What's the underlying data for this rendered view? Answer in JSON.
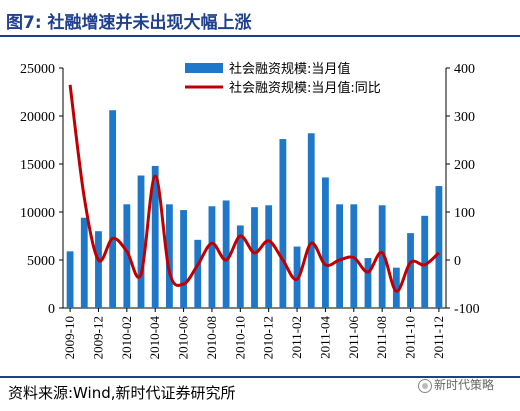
{
  "header": {
    "title": "图7:  社融增速并未出现大幅上涨"
  },
  "source": "资料来源:Wind,新时代证券研究所",
  "watermark": "新时代策略",
  "colors": {
    "bar": "#1f77c9",
    "line": "#c00000",
    "title": "#1f3f8f",
    "rule": "#1f3f8f"
  },
  "chart_data": {
    "type": "bar+line",
    "legend_position": "top-right",
    "grid": false,
    "categories": [
      "2009-10",
      "2009-11",
      "2009-12",
      "2010-01",
      "2010-02",
      "2010-03",
      "2010-04",
      "2010-05",
      "2010-06",
      "2010-07",
      "2010-08",
      "2010-09",
      "2010-10",
      "2010-11",
      "2010-12",
      "2011-01",
      "2011-02",
      "2011-03",
      "2011-04",
      "2011-05",
      "2011-06",
      "2011-07",
      "2011-08",
      "2011-09",
      "2011-10",
      "2011-11",
      "2011-12"
    ],
    "x_tick_labels": [
      "2009-10",
      "2009-12",
      "2010-02",
      "2010-04",
      "2010-06",
      "2010-08",
      "2010-10",
      "2010-12",
      "2011-02",
      "2011-04",
      "2011-06",
      "2011-08",
      "2011-10",
      "2011-12"
    ],
    "y_left": {
      "min": 0,
      "max": 25000,
      "ticks": [
        "0",
        "5000",
        "10000",
        "15000",
        "20000",
        "25000"
      ]
    },
    "y_right": {
      "min": -100,
      "max": 400,
      "ticks": [
        "-100",
        "0",
        "100",
        "200",
        "300",
        "400"
      ]
    },
    "series": [
      {
        "name": "社会融资规模:当月值",
        "type": "bar",
        "axis": "left",
        "values": [
          5900,
          9400,
          8000,
          20600,
          10800,
          13800,
          14800,
          10800,
          10200,
          7100,
          10600,
          11200,
          8600,
          10500,
          10700,
          17600,
          6400,
          18200,
          13600,
          10800,
          10800,
          5200,
          10700,
          4200,
          7800,
          9600,
          12700
        ]
      },
      {
        "name": "社会融资规模:当月值:同比",
        "type": "line",
        "axis": "right",
        "values": [
          365,
          130,
          0,
          45,
          18,
          -30,
          175,
          -25,
          -50,
          -10,
          35,
          0,
          50,
          15,
          40,
          0,
          -40,
          35,
          -10,
          0,
          5,
          -25,
          15,
          -65,
          -5,
          -10,
          15
        ]
      }
    ]
  }
}
